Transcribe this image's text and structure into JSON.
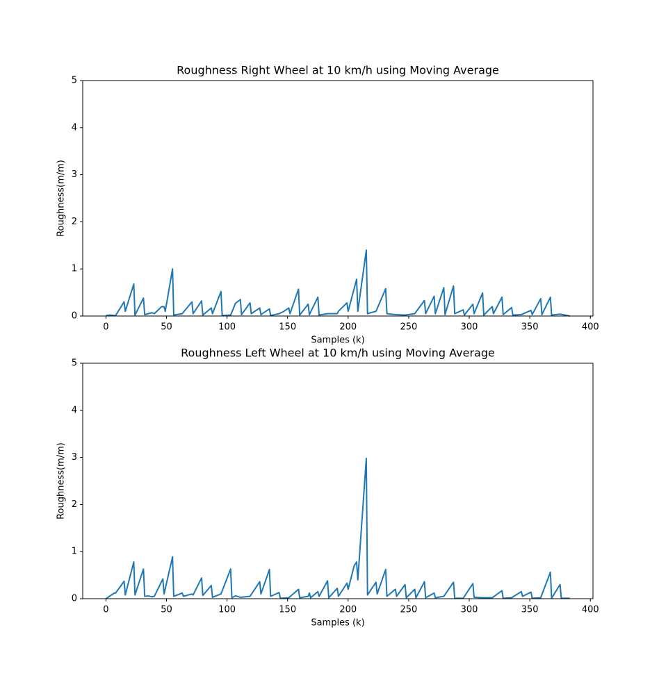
{
  "chart_data": [
    {
      "type": "line",
      "title": "Roughness Right Wheel at 10 km/h using Moving Average",
      "xlabel": "Samples (k)",
      "ylabel": "Roughness(m/m)",
      "color": "#1f77b4",
      "xlim": [
        -19.15,
        402.15
      ],
      "ylim": [
        0,
        5
      ],
      "xticks": [
        0,
        50,
        100,
        150,
        200,
        250,
        300,
        350,
        400
      ],
      "yticks": [
        0,
        1,
        2,
        3,
        4,
        5
      ],
      "x": [
        0,
        3,
        8,
        15,
        16,
        23,
        24,
        31,
        32,
        38,
        40,
        46,
        48,
        49,
        55,
        56,
        63,
        71,
        72,
        79,
        80,
        87,
        88,
        95,
        96,
        103,
        107,
        111,
        112,
        119,
        120,
        127,
        128,
        135,
        136,
        143,
        147,
        151,
        152,
        159,
        160,
        167,
        168,
        175,
        176,
        183,
        191,
        192,
        199,
        200,
        207,
        208,
        215,
        216,
        220,
        223,
        231,
        232,
        239,
        247,
        255,
        263,
        264,
        271,
        272,
        279,
        280,
        287,
        288,
        295,
        296,
        303,
        304,
        311,
        312,
        319,
        320,
        327,
        328,
        335,
        336,
        343,
        351,
        352,
        359,
        360,
        367,
        368,
        375,
        383
      ],
      "values": [
        0.01,
        0.02,
        0.01,
        0.3,
        0.1,
        0.68,
        0.02,
        0.38,
        0.03,
        0.07,
        0.05,
        0.2,
        0.2,
        0.1,
        1.0,
        0.02,
        0.05,
        0.3,
        0.05,
        0.32,
        0.02,
        0.17,
        0.05,
        0.52,
        0.01,
        0.02,
        0.27,
        0.35,
        0.03,
        0.28,
        0.05,
        0.17,
        0.03,
        0.15,
        0.01,
        0.05,
        0.1,
        0.17,
        0.05,
        0.57,
        0.02,
        0.25,
        0.03,
        0.4,
        0.02,
        0.05,
        0.05,
        0.1,
        0.28,
        0.1,
        0.78,
        0.1,
        1.4,
        0.05,
        0.08,
        0.1,
        0.58,
        0.05,
        0.03,
        0.02,
        0.05,
        0.33,
        0.05,
        0.42,
        0.05,
        0.6,
        0.03,
        0.64,
        0.05,
        0.13,
        0.02,
        0.25,
        0.05,
        0.49,
        0.02,
        0.2,
        0.05,
        0.4,
        0.03,
        0.18,
        0.02,
        0.03,
        0.12,
        0.03,
        0.37,
        0.03,
        0.4,
        0.02,
        0.04,
        0.0
      ]
    },
    {
      "type": "line",
      "title": "Roughness Left Wheel at 10 km/h using Moving Average",
      "xlabel": "Samples (k)",
      "ylabel": "Roughness(m/m)",
      "color": "#1f77b4",
      "xlim": [
        -19.15,
        402.15
      ],
      "ylim": [
        0,
        5
      ],
      "xticks": [
        0,
        50,
        100,
        150,
        200,
        250,
        300,
        350,
        400
      ],
      "yticks": [
        0,
        1,
        2,
        3,
        4,
        5
      ],
      "x": [
        0,
        7,
        8,
        15,
        16,
        23,
        24,
        31,
        32,
        35,
        38,
        40,
        47,
        48,
        55,
        56,
        63,
        64,
        71,
        72,
        79,
        80,
        87,
        88,
        95,
        103,
        104,
        107,
        111,
        119,
        127,
        128,
        135,
        136,
        143,
        144,
        151,
        159,
        160,
        167,
        168,
        169,
        175,
        176,
        183,
        184,
        191,
        192,
        199,
        200,
        205,
        207,
        208,
        215,
        216,
        223,
        224,
        231,
        232,
        239,
        240,
        247,
        248,
        255,
        256,
        263,
        264,
        271,
        272,
        279,
        287,
        288,
        295,
        303,
        304,
        311,
        319,
        327,
        328,
        335,
        343,
        344,
        351,
        352,
        359,
        367,
        368,
        375,
        376,
        383
      ],
      "values": [
        0.0,
        0.12,
        0.12,
        0.37,
        0.08,
        0.78,
        0.08,
        0.63,
        0.05,
        0.06,
        0.04,
        0.05,
        0.42,
        0.1,
        0.89,
        0.05,
        0.12,
        0.05,
        0.1,
        0.08,
        0.44,
        0.07,
        0.28,
        0.03,
        0.1,
        0.63,
        0.02,
        0.06,
        0.03,
        0.05,
        0.36,
        0.1,
        0.62,
        0.05,
        0.13,
        0.01,
        0.02,
        0.2,
        0.02,
        0.05,
        0.12,
        0.02,
        0.15,
        0.05,
        0.38,
        0.02,
        0.22,
        0.05,
        0.33,
        0.2,
        0.7,
        0.78,
        0.4,
        2.98,
        0.08,
        0.35,
        0.1,
        0.62,
        0.05,
        0.2,
        0.05,
        0.3,
        0.02,
        0.2,
        0.02,
        0.36,
        0.02,
        0.12,
        0.02,
        0.05,
        0.35,
        0.01,
        0.01,
        0.32,
        0.03,
        0.02,
        0.02,
        0.17,
        0.01,
        0.02,
        0.15,
        0.05,
        0.14,
        0.01,
        0.02,
        0.56,
        0.01,
        0.3,
        0.01,
        0.01
      ]
    }
  ]
}
